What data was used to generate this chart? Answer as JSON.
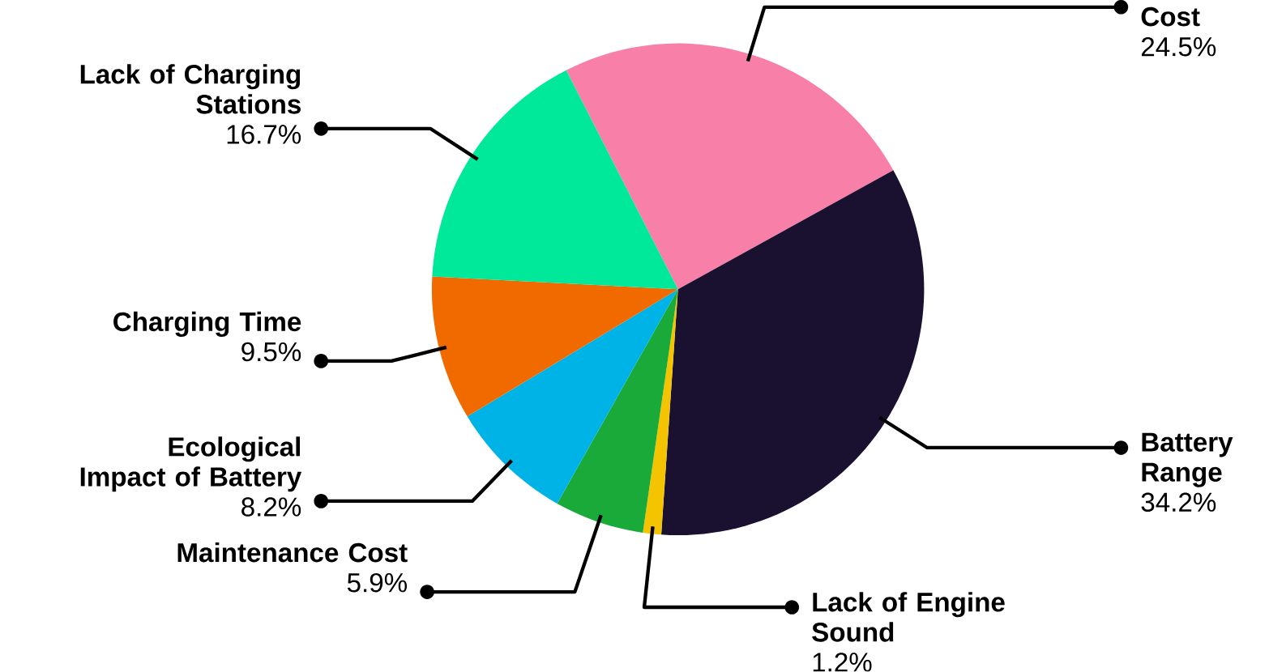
{
  "chart_data": {
    "type": "pie",
    "categories": [
      "Cost",
      "Battery Range",
      "Lack of Engine Sound",
      "Maintenance Cost",
      "Ecological Impact of Battery",
      "Charging Time",
      "Lack of Charging Stations"
    ],
    "values": [
      24.5,
      34.2,
      1.2,
      5.9,
      8.2,
      9.5,
      16.7
    ],
    "value_labels": [
      "24.5%",
      "34.2%",
      "1.2%",
      "5.9%",
      "8.2%",
      "9.5%",
      "16.7%"
    ],
    "colors": [
      "#f77fa8",
      "#1a1030",
      "#f5c400",
      "#1aaa3a",
      "#00b3e6",
      "#f06a00",
      "#00e89a"
    ]
  }
}
